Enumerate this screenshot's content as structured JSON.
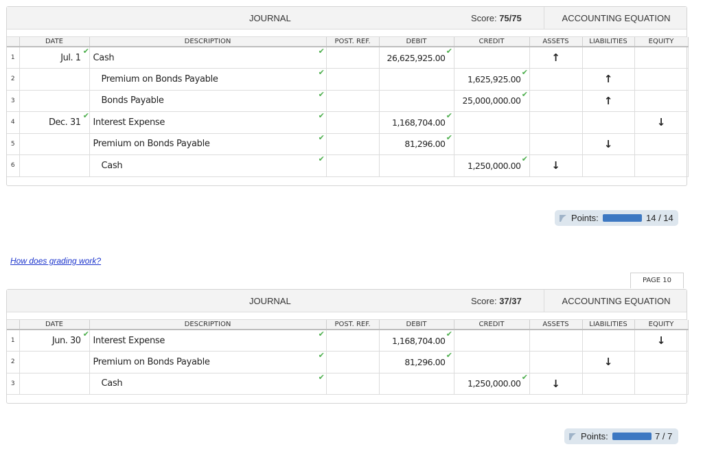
{
  "columns": {
    "date": "DATE",
    "description": "DESCRIPTION",
    "post_ref": "POST. REF.",
    "debit": "DEBIT",
    "credit": "CREDIT",
    "assets": "ASSETS",
    "liabilities": "LIABILITIES",
    "equity": "EQUITY"
  },
  "journal1": {
    "title": "JOURNAL",
    "score_label": "Score:",
    "score_value": "75/75",
    "equation_title": "ACCOUNTING EQUATION",
    "rows": [
      {
        "num": "1",
        "date": "Jul. 1",
        "desc": "Cash",
        "ref": "",
        "debit": "26,625,925.00",
        "credit": "",
        "assets": "↑",
        "liabilities": "",
        "equity": ""
      },
      {
        "num": "2",
        "date": "",
        "desc": "Premium on Bonds Payable",
        "ref": "",
        "debit": "",
        "credit": "1,625,925.00",
        "assets": "",
        "liabilities": "↑",
        "equity": ""
      },
      {
        "num": "3",
        "date": "",
        "desc": "Bonds Payable",
        "ref": "",
        "debit": "",
        "credit": "25,000,000.00",
        "assets": "",
        "liabilities": "↑",
        "equity": ""
      },
      {
        "num": "4",
        "date": "Dec. 31",
        "desc": "Interest Expense",
        "ref": "",
        "debit": "1,168,704.00",
        "credit": "",
        "assets": "",
        "liabilities": "",
        "equity": "↓"
      },
      {
        "num": "5",
        "date": "",
        "desc": "Premium on Bonds Payable",
        "ref": "",
        "debit": "81,296.00",
        "credit": "",
        "assets": "",
        "liabilities": "↓",
        "equity": ""
      },
      {
        "num": "6",
        "date": "",
        "desc": "Cash",
        "ref": "",
        "debit": "",
        "credit": "1,250,000.00",
        "assets": "↓",
        "liabilities": "",
        "equity": ""
      }
    ],
    "points_label": "Points:",
    "points_value": "14 / 14",
    "points_fraction": 1.0
  },
  "help_link": "How does grading work?",
  "page_tab": "PAGE 10",
  "journal2": {
    "title": "JOURNAL",
    "score_label": "Score:",
    "score_value": "37/37",
    "equation_title": "ACCOUNTING EQUATION",
    "rows": [
      {
        "num": "1",
        "date": "Jun. 30",
        "desc": "Interest Expense",
        "ref": "",
        "debit": "1,168,704.00",
        "credit": "",
        "assets": "",
        "liabilities": "",
        "equity": "↓"
      },
      {
        "num": "2",
        "date": "",
        "desc": "Premium on Bonds Payable",
        "ref": "",
        "debit": "81,296.00",
        "credit": "",
        "assets": "",
        "liabilities": "↓",
        "equity": ""
      },
      {
        "num": "3",
        "date": "",
        "desc": "Cash",
        "ref": "",
        "debit": "",
        "credit": "1,250,000.00",
        "assets": "↓",
        "liabilities": "",
        "equity": ""
      }
    ],
    "points_label": "Points:",
    "points_value": "7 / 7",
    "points_fraction": 1.0
  },
  "colors": {
    "check": "#4cae4c",
    "points_bar": "#3d78c2",
    "points_bg": "#dde6ee",
    "link": "#1a33cc"
  },
  "icons": {
    "check": "checkmark-icon",
    "points": "flag-icon"
  }
}
